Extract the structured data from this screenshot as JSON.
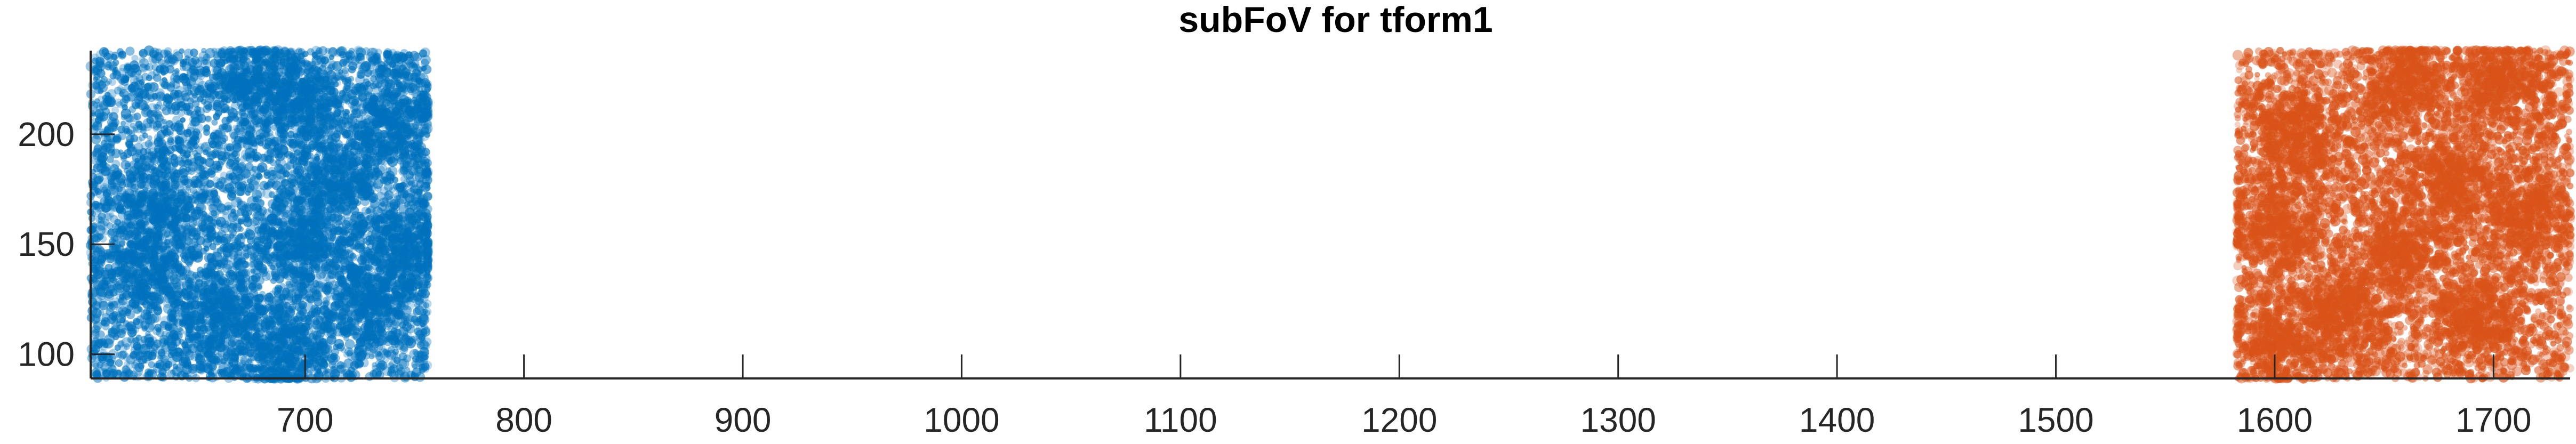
{
  "chart_data": {
    "type": "scatter",
    "title": "subFoV for tform1",
    "xlabel": "",
    "ylabel": "",
    "xlim": [
      602,
      1735
    ],
    "ylim": [
      89,
      238
    ],
    "x_ticks": [
      700,
      800,
      900,
      1000,
      1100,
      1200,
      1300,
      1400,
      1500,
      1600,
      1700
    ],
    "y_ticks": [
      100,
      150,
      200
    ],
    "grid": false,
    "legend": "none",
    "series": [
      {
        "color": "#0072BD",
        "point_count": 9000,
        "x_range": [
          602,
          756
        ],
        "y_range": [
          89,
          238
        ],
        "dense_clusters": [
          {
            "x": 675,
            "y": 225
          },
          {
            "x": 700,
            "y": 215
          },
          {
            "x": 740,
            "y": 205
          },
          {
            "x": 715,
            "y": 180
          },
          {
            "x": 635,
            "y": 170
          },
          {
            "x": 700,
            "y": 150
          },
          {
            "x": 745,
            "y": 150
          },
          {
            "x": 625,
            "y": 140
          },
          {
            "x": 660,
            "y": 120
          },
          {
            "x": 730,
            "y": 125
          },
          {
            "x": 690,
            "y": 100
          }
        ]
      },
      {
        "color": "#D95319",
        "point_count": 9000,
        "x_range": [
          1583,
          1735
        ],
        "y_range": [
          89,
          238
        ],
        "dense_clusters": [
          {
            "x": 1660,
            "y": 225
          },
          {
            "x": 1705,
            "y": 225
          },
          {
            "x": 1610,
            "y": 200
          },
          {
            "x": 1680,
            "y": 180
          },
          {
            "x": 1600,
            "y": 160
          },
          {
            "x": 1655,
            "y": 150
          },
          {
            "x": 1715,
            "y": 165
          },
          {
            "x": 1630,
            "y": 120
          },
          {
            "x": 1690,
            "y": 115
          },
          {
            "x": 1600,
            "y": 105
          }
        ]
      }
    ]
  }
}
